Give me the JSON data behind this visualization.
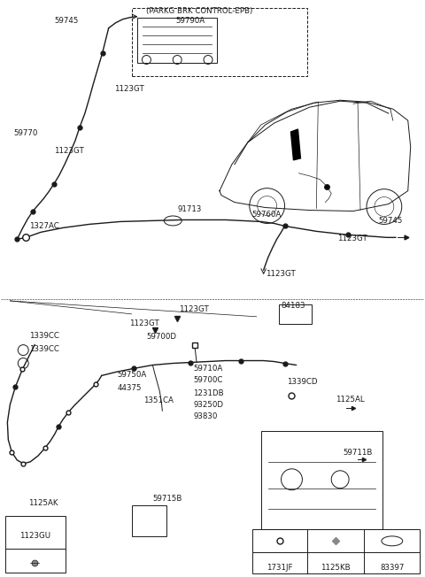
{
  "bg_color": "#ffffff",
  "fig_width": 4.8,
  "fig_height": 6.52,
  "dpi": 100,
  "labels": {
    "parkg_brk": "(PARKG BRK CONTROL-EPB)",
    "p59790A": "59790A",
    "p59745_top": "59745",
    "p59770": "59770",
    "p1123GT_1": "1123GT",
    "p1123GT_2": "1123GT",
    "p91713": "91713",
    "p1327AC": "1327AC",
    "p59760A": "59760A",
    "p1123GT_3": "1123GT",
    "p1123GT_4": "1123GT",
    "p59745_right": "59745",
    "p84183": "84183",
    "p1123GT_5": "1123GT",
    "p1123GT_6": "1123GT",
    "p1339CC_1": "1339CC",
    "p1339CC_2": "1339CC",
    "p59700D": "59700D",
    "p59750A": "59750A",
    "p44375": "44375",
    "p1351CA": "1351CA",
    "p59710A": "59710A",
    "p59700C": "59700C",
    "p1231DB": "1231DB",
    "p93250D": "93250D",
    "p93830": "93830",
    "p1339CD": "1339CD",
    "p1125AL": "1125AL",
    "p59711B": "59711B",
    "p1123GU": "1123GU",
    "p1125AK": "1125AK",
    "p59715B": "59715B",
    "p1731JF": "1731JF",
    "p1125KB": "1125KB",
    "p83397": "83397"
  }
}
